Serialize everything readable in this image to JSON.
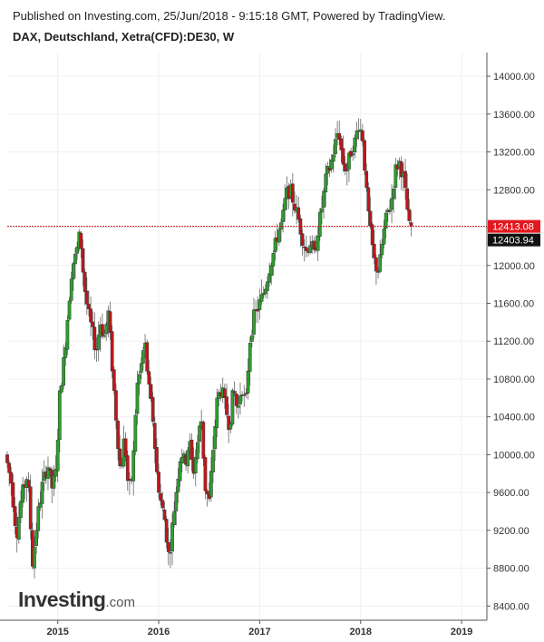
{
  "header": {
    "published": "Published on Investing.com, 25/Jun/2018 - 9:15:18 GMT, Powered by TradingView.",
    "title": "DAX, Deutschland, Xetra(CFD):DE30, W"
  },
  "logo": {
    "brand": "Investing",
    "suffix": ".com"
  },
  "colors": {
    "up": "#2ca02c",
    "down": "#c0161a",
    "refline": "#c0161a",
    "last_badge": "#111111",
    "ref_badge": "#e4181f"
  },
  "chart_data": {
    "type": "candlestick",
    "timeframe": "W",
    "ylim": [
      8250,
      14250
    ],
    "yticks": [
      "14000.00",
      "13600.00",
      "13200.00",
      "12800.00",
      "12400.00",
      "12000.00",
      "11600.00",
      "11200.00",
      "10800.00",
      "10400.00",
      "10000.00",
      "9600.00",
      "9200.00",
      "8800.00",
      "8400.00"
    ],
    "ytick_values": [
      14000,
      13600,
      13200,
      12800,
      12400,
      12000,
      11600,
      11200,
      10800,
      10400,
      10000,
      9600,
      9200,
      8800,
      8400
    ],
    "xticks": [
      "2015",
      "2016",
      "2017",
      "2018",
      "2019"
    ],
    "x_range": [
      2014.5,
      2019.25
    ],
    "reference_line": {
      "value": 12413.08,
      "label": "12413.08"
    },
    "last_price": {
      "value": 12403.94,
      "label": "12403.94"
    },
    "price_path": [
      [
        2014.5,
        10000
      ],
      [
        2014.56,
        9700
      ],
      [
        2014.61,
        9150
      ],
      [
        2014.66,
        9550
      ],
      [
        2014.72,
        9800
      ],
      [
        2014.77,
        8850
      ],
      [
        2014.82,
        9350
      ],
      [
        2014.87,
        9700
      ],
      [
        2014.92,
        9900
      ],
      [
        2014.96,
        9650
      ],
      [
        2015.0,
        9800
      ],
      [
        2015.04,
        10650
      ],
      [
        2015.08,
        11000
      ],
      [
        2015.12,
        11500
      ],
      [
        2015.16,
        12000
      ],
      [
        2015.2,
        12100
      ],
      [
        2015.24,
        12350
      ],
      [
        2015.28,
        11800
      ],
      [
        2015.32,
        11500
      ],
      [
        2015.36,
        11300
      ],
      [
        2015.4,
        11100
      ],
      [
        2015.44,
        11400
      ],
      [
        2015.48,
        11250
      ],
      [
        2015.52,
        11500
      ],
      [
        2015.56,
        10900
      ],
      [
        2015.6,
        10350
      ],
      [
        2015.64,
        9800
      ],
      [
        2015.68,
        10200
      ],
      [
        2015.72,
        9600
      ],
      [
        2015.76,
        9800
      ],
      [
        2015.8,
        10700
      ],
      [
        2015.84,
        10900
      ],
      [
        2015.88,
        11200
      ],
      [
        2015.92,
        10700
      ],
      [
        2015.96,
        10400
      ],
      [
        2016.0,
        9800
      ],
      [
        2016.04,
        9500
      ],
      [
        2016.08,
        9300
      ],
      [
        2016.12,
        8900
      ],
      [
        2016.16,
        9300
      ],
      [
        2016.2,
        9700
      ],
      [
        2016.24,
        10050
      ],
      [
        2016.28,
        9900
      ],
      [
        2016.32,
        10150
      ],
      [
        2016.36,
        9800
      ],
      [
        2016.4,
        10100
      ],
      [
        2016.44,
        10400
      ],
      [
        2016.48,
        9650
      ],
      [
        2016.52,
        9500
      ],
      [
        2016.56,
        10100
      ],
      [
        2016.6,
        10600
      ],
      [
        2016.64,
        10700
      ],
      [
        2016.68,
        10500
      ],
      [
        2016.72,
        10300
      ],
      [
        2016.76,
        10700
      ],
      [
        2016.8,
        10450
      ],
      [
        2016.84,
        10750
      ],
      [
        2016.88,
        10500
      ],
      [
        2016.92,
        11200
      ],
      [
        2016.96,
        11450
      ],
      [
        2017.0,
        11550
      ],
      [
        2017.04,
        11650
      ],
      [
        2017.08,
        11800
      ],
      [
        2017.12,
        12000
      ],
      [
        2017.16,
        12150
      ],
      [
        2017.2,
        12350
      ],
      [
        2017.24,
        12450
      ],
      [
        2017.28,
        12750
      ],
      [
        2017.32,
        12800
      ],
      [
        2017.36,
        12650
      ],
      [
        2017.4,
        12500
      ],
      [
        2017.44,
        12300
      ],
      [
        2017.48,
        12150
      ],
      [
        2017.52,
        12250
      ],
      [
        2017.56,
        12100
      ],
      [
        2017.6,
        12400
      ],
      [
        2017.64,
        12650
      ],
      [
        2017.68,
        12950
      ],
      [
        2017.72,
        13050
      ],
      [
        2017.76,
        13250
      ],
      [
        2017.8,
        13450
      ],
      [
        2017.84,
        13100
      ],
      [
        2017.88,
        13000
      ],
      [
        2017.92,
        13200
      ],
      [
        2017.96,
        13300
      ],
      [
        2018.0,
        13500
      ],
      [
        2018.04,
        13350
      ],
      [
        2018.08,
        12700
      ],
      [
        2018.12,
        12300
      ],
      [
        2018.16,
        12000
      ],
      [
        2018.2,
        11950
      ],
      [
        2018.24,
        12300
      ],
      [
        2018.28,
        12550
      ],
      [
        2018.32,
        12650
      ],
      [
        2018.36,
        13000
      ],
      [
        2018.4,
        13100
      ],
      [
        2018.44,
        12950
      ],
      [
        2018.48,
        12600
      ],
      [
        2018.5,
        12403.94
      ]
    ]
  }
}
